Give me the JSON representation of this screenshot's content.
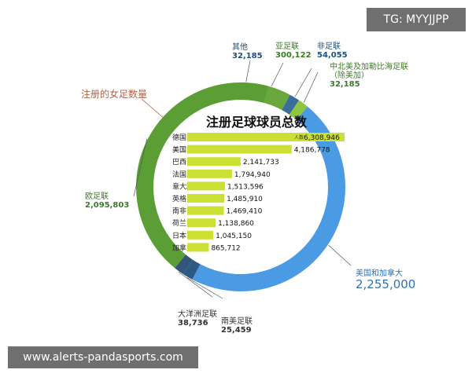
{
  "watermark_top": "TG: MYYJJPP",
  "watermark_bottom": "www.alerts-pandasports.com",
  "chart_data": [
    {
      "type": "pie",
      "title": "注册的女足数量",
      "slices": [
        {
          "name": "美国和加拿大",
          "value": "2,255,000",
          "amount": 2255000,
          "color": "#4a9be4"
        },
        {
          "name": "欧足联",
          "value": "2,095,803",
          "amount": 2095803,
          "color": "#5b9e35"
        },
        {
          "name": "亚足联",
          "value": "300,122",
          "amount": 300122,
          "color": "#6aa83e"
        },
        {
          "name": "非足联",
          "value": "54,055",
          "amount": 54055,
          "color": "#3a6c9c"
        },
        {
          "name": "大洋洲足联",
          "value": "38,736",
          "amount": 38736,
          "color": "#33567a"
        },
        {
          "name": "其他",
          "value": "32,185",
          "amount": 32185,
          "color": "#4a9be4"
        },
        {
          "name": "中北美及加勒比海足联\n（除美加）",
          "value": "32,185",
          "amount": 32185,
          "color": "#8cc640"
        },
        {
          "name": "南美足联",
          "value": "25,459",
          "amount": 25459,
          "color": "#2d5a82"
        }
      ]
    },
    {
      "type": "bar",
      "title": "注册足球球员总数",
      "unit_label": "人数",
      "categories": [
        "德国",
        "美国",
        "巴西",
        "法国",
        "意大利",
        "英格兰",
        "南非",
        "荷兰",
        "日本",
        "加拿大"
      ],
      "values": [
        6308946,
        4186778,
        2141733,
        1794940,
        1513596,
        1485910,
        1469410,
        1138860,
        1045150,
        865712
      ],
      "value_labels": [
        "6,308,946",
        "4,186,778",
        "2,141,733",
        "1,794,940",
        "1,513,596",
        "1,485,910",
        "1,469,410",
        "1,138,860",
        "1,045,150",
        "865,712"
      ],
      "color": "#cce033"
    }
  ]
}
